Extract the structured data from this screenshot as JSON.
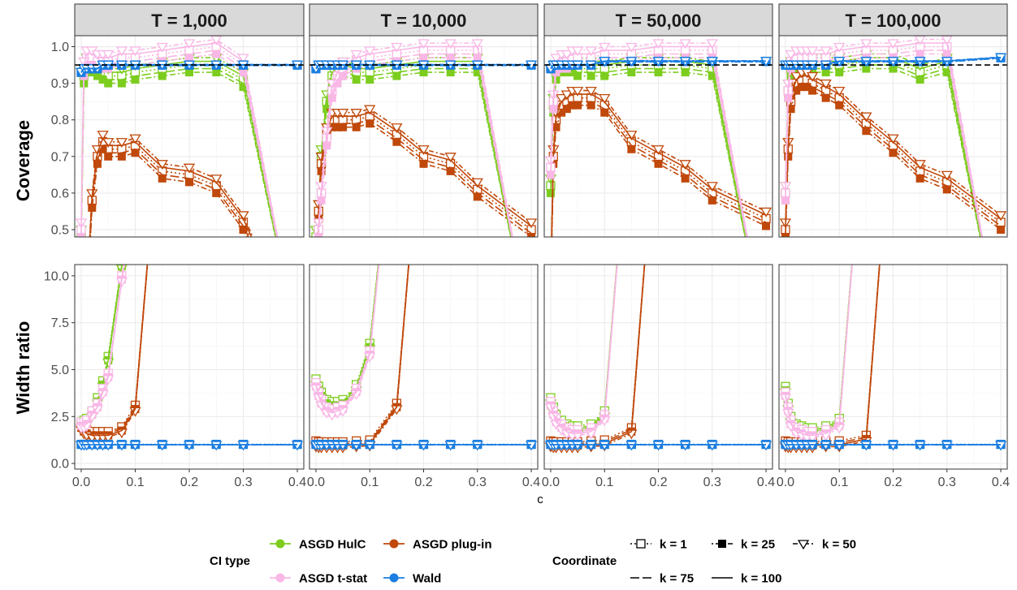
{
  "figure": {
    "panels": [
      "T = 1,000",
      "T = 10,000",
      "T = 50,000",
      "T = 100,000"
    ],
    "xlabel": "c",
    "row_labels": [
      "Coverage",
      "Width ratio"
    ],
    "x_ticks": [
      "0.0",
      "0.1",
      "0.2",
      "0.3",
      "0.4"
    ],
    "coverage_ticks": [
      "0.5",
      "0.6",
      "0.7",
      "0.8",
      "0.9",
      "1.0"
    ],
    "width_ticks": [
      "0.0",
      "2.5",
      "5.0",
      "7.5",
      "10.0"
    ]
  },
  "legend": {
    "ci_title": "CI type",
    "ci_types": [
      {
        "name": "ASGD HulC",
        "color": "#7ccd1e"
      },
      {
        "name": "ASGD plug-in",
        "color": "#c0480a"
      },
      {
        "name": "ASGD t-stat",
        "color": "#f9b7e6"
      },
      {
        "name": "Wald",
        "color": "#1b7ee0"
      }
    ],
    "coord_title": "Coordinate",
    "coordinates": [
      {
        "name": "k = 1",
        "linetype": "dotted",
        "shape": "open-square"
      },
      {
        "name": "k = 25",
        "linetype": "dotdash",
        "shape": "filled-square"
      },
      {
        "name": "k = 50",
        "linetype": "dashdot",
        "shape": "open-triangle-down"
      },
      {
        "name": "k = 75",
        "linetype": "longdash",
        "shape": "none"
      },
      {
        "name": "k = 100",
        "linetype": "solid",
        "shape": "none"
      }
    ]
  },
  "chart_data": {
    "type": "line",
    "facets": [
      "T = 1,000",
      "T = 10,000",
      "T = 50,000",
      "T = 100,000"
    ],
    "x": [
      0.0,
      0.005,
      0.01,
      0.02,
      0.03,
      0.04,
      0.05,
      0.075,
      0.1,
      0.15,
      0.2,
      0.25,
      0.3,
      0.4
    ],
    "reference_lines": {
      "coverage": 0.95,
      "width_ratio": 1.0
    },
    "ylim": {
      "coverage": [
        0.48,
        1.03
      ],
      "width_ratio": [
        -0.3,
        10.6
      ]
    },
    "xlim": [
      -0.012,
      0.412
    ],
    "series": [
      {
        "name": "ASGD HulC",
        "coverage": [
          [
            0.48,
            0.92,
            0.95,
            0.95,
            0.94,
            0.93,
            0.92,
            0.92,
            0.93,
            0.94,
            0.95,
            0.95,
            0.91,
            0.2
          ],
          [
            0.48,
            0.55,
            0.7,
            0.85,
            0.92,
            0.93,
            0.94,
            0.93,
            0.93,
            0.94,
            0.95,
            0.95,
            0.95,
            0.2
          ],
          [
            0.62,
            0.84,
            0.93,
            0.95,
            0.95,
            0.95,
            0.94,
            0.94,
            0.94,
            0.95,
            0.95,
            0.95,
            0.94,
            0.2
          ],
          [
            0.6,
            0.88,
            0.94,
            0.95,
            0.95,
            0.95,
            0.95,
            0.95,
            0.95,
            0.96,
            0.96,
            0.93,
            0.95,
            0.2
          ]
        ],
        "width_ratio": [
          [
            2.0,
            2.1,
            2.2,
            2.6,
            3.3,
            4.2,
            5.5,
            10.5,
            14,
            20,
            20,
            20,
            20,
            20
          ],
          [
            4.3,
            3.9,
            3.6,
            3.2,
            3.1,
            3.1,
            3.2,
            4.0,
            6.2,
            20,
            20,
            20,
            20,
            20
          ],
          [
            3.3,
            2.8,
            2.4,
            2.1,
            1.9,
            1.8,
            1.8,
            1.9,
            2.6,
            20,
            20,
            20,
            20,
            20
          ],
          [
            3.9,
            3.0,
            2.3,
            1.9,
            1.8,
            1.7,
            1.7,
            1.8,
            2.2,
            20,
            20,
            20,
            20,
            20
          ]
        ]
      },
      {
        "name": "ASGD plug-in",
        "coverage": [
          [
            0.2,
            0.2,
            0.3,
            0.58,
            0.7,
            0.74,
            0.72,
            0.72,
            0.73,
            0.66,
            0.65,
            0.62,
            0.52,
            0.2
          ],
          [
            0.3,
            0.55,
            0.68,
            0.76,
            0.8,
            0.8,
            0.8,
            0.8,
            0.81,
            0.76,
            0.7,
            0.68,
            0.61,
            0.5
          ],
          [
            0.35,
            0.7,
            0.8,
            0.84,
            0.85,
            0.86,
            0.86,
            0.86,
            0.84,
            0.74,
            0.7,
            0.66,
            0.6,
            0.53
          ],
          [
            0.5,
            0.72,
            0.85,
            0.9,
            0.91,
            0.91,
            0.9,
            0.88,
            0.86,
            0.79,
            0.73,
            0.66,
            0.63,
            0.52
          ]
        ],
        "width_ratio": [
          [
            1.9,
            1.7,
            1.6,
            1.5,
            1.5,
            1.5,
            1.5,
            1.75,
            2.9,
            20,
            20,
            20,
            20,
            20
          ],
          [
            1.0,
            0.95,
            0.95,
            0.95,
            0.95,
            0.95,
            0.95,
            1.0,
            1.05,
            3.0,
            20,
            20,
            20,
            20
          ],
          [
            1.0,
            0.95,
            0.95,
            0.95,
            0.95,
            0.95,
            0.95,
            1.0,
            1.05,
            1.7,
            20,
            20,
            20,
            20
          ],
          [
            1.0,
            0.95,
            0.95,
            0.95,
            0.95,
            0.95,
            0.95,
            1.0,
            1.0,
            1.3,
            20,
            20,
            20,
            20
          ]
        ]
      },
      {
        "name": "ASGD t-stat",
        "coverage": [
          [
            0.5,
            0.94,
            0.97,
            0.97,
            0.96,
            0.96,
            0.96,
            0.97,
            0.97,
            0.98,
            0.99,
            1.0,
            0.95,
            0.2
          ],
          [
            0.45,
            0.5,
            0.6,
            0.75,
            0.88,
            0.92,
            0.94,
            0.96,
            0.97,
            0.98,
            0.99,
            0.99,
            0.99,
            0.2
          ],
          [
            0.67,
            0.85,
            0.95,
            0.96,
            0.96,
            0.97,
            0.97,
            0.97,
            0.98,
            0.98,
            0.99,
            0.99,
            0.99,
            0.2
          ],
          [
            0.6,
            0.88,
            0.96,
            0.97,
            0.97,
            0.97,
            0.97,
            0.97,
            0.98,
            0.99,
            0.99,
            1.0,
            1.0,
            0.2
          ]
        ],
        "width_ratio": [
          [
            2.0,
            2.0,
            2.1,
            2.6,
            3.0,
            3.8,
            4.6,
            9.8,
            14,
            20,
            20,
            20,
            20,
            20
          ],
          [
            4.1,
            3.6,
            3.2,
            2.8,
            2.7,
            2.8,
            2.9,
            3.8,
            5.8,
            20,
            20,
            20,
            20,
            20
          ],
          [
            3.1,
            2.6,
            2.2,
            1.9,
            1.7,
            1.6,
            1.6,
            1.7,
            2.4,
            20,
            20,
            20,
            20,
            20
          ],
          [
            3.6,
            2.8,
            2.1,
            1.7,
            1.6,
            1.5,
            1.5,
            1.6,
            2.0,
            20,
            20,
            20,
            20,
            20
          ]
        ]
      },
      {
        "name": "Wald",
        "coverage": [
          [
            0.93,
            0.94,
            0.94,
            0.94,
            0.94,
            0.95,
            0.95,
            0.95,
            0.95,
            0.95,
            0.95,
            0.95,
            0.95,
            0.95
          ],
          [
            0.94,
            0.95,
            0.95,
            0.95,
            0.95,
            0.95,
            0.95,
            0.95,
            0.95,
            0.95,
            0.95,
            0.95,
            0.95,
            0.95
          ],
          [
            0.94,
            0.95,
            0.95,
            0.95,
            0.95,
            0.95,
            0.95,
            0.95,
            0.96,
            0.96,
            0.96,
            0.96,
            0.96,
            0.96
          ],
          [
            0.95,
            0.95,
            0.95,
            0.95,
            0.95,
            0.95,
            0.95,
            0.95,
            0.96,
            0.96,
            0.96,
            0.96,
            0.96,
            0.97
          ]
        ],
        "width_ratio": [
          [
            1.0,
            1.0,
            1.0,
            1.0,
            1.0,
            1.0,
            1.0,
            1.0,
            1.0,
            1.0,
            1.0,
            1.0,
            1.0,
            1.0
          ],
          [
            1.0,
            1.0,
            1.0,
            1.0,
            1.0,
            1.0,
            1.0,
            1.0,
            1.0,
            1.0,
            1.0,
            1.0,
            1.0,
            1.0
          ],
          [
            1.0,
            1.0,
            1.0,
            1.0,
            1.0,
            1.0,
            1.0,
            1.0,
            1.0,
            1.0,
            1.0,
            1.0,
            1.0,
            1.0
          ],
          [
            1.0,
            1.0,
            1.0,
            1.0,
            1.0,
            1.0,
            1.0,
            1.0,
            1.0,
            1.0,
            1.0,
            1.0,
            1.0,
            1.0
          ]
        ]
      }
    ],
    "coordinate_offsets": {
      "coverage": [
        0.0,
        -0.02,
        0.02,
        -0.01,
        0.01
      ],
      "width_ratio": [
        0.2,
        0.0,
        -0.1,
        0.1,
        0.0
      ]
    }
  }
}
